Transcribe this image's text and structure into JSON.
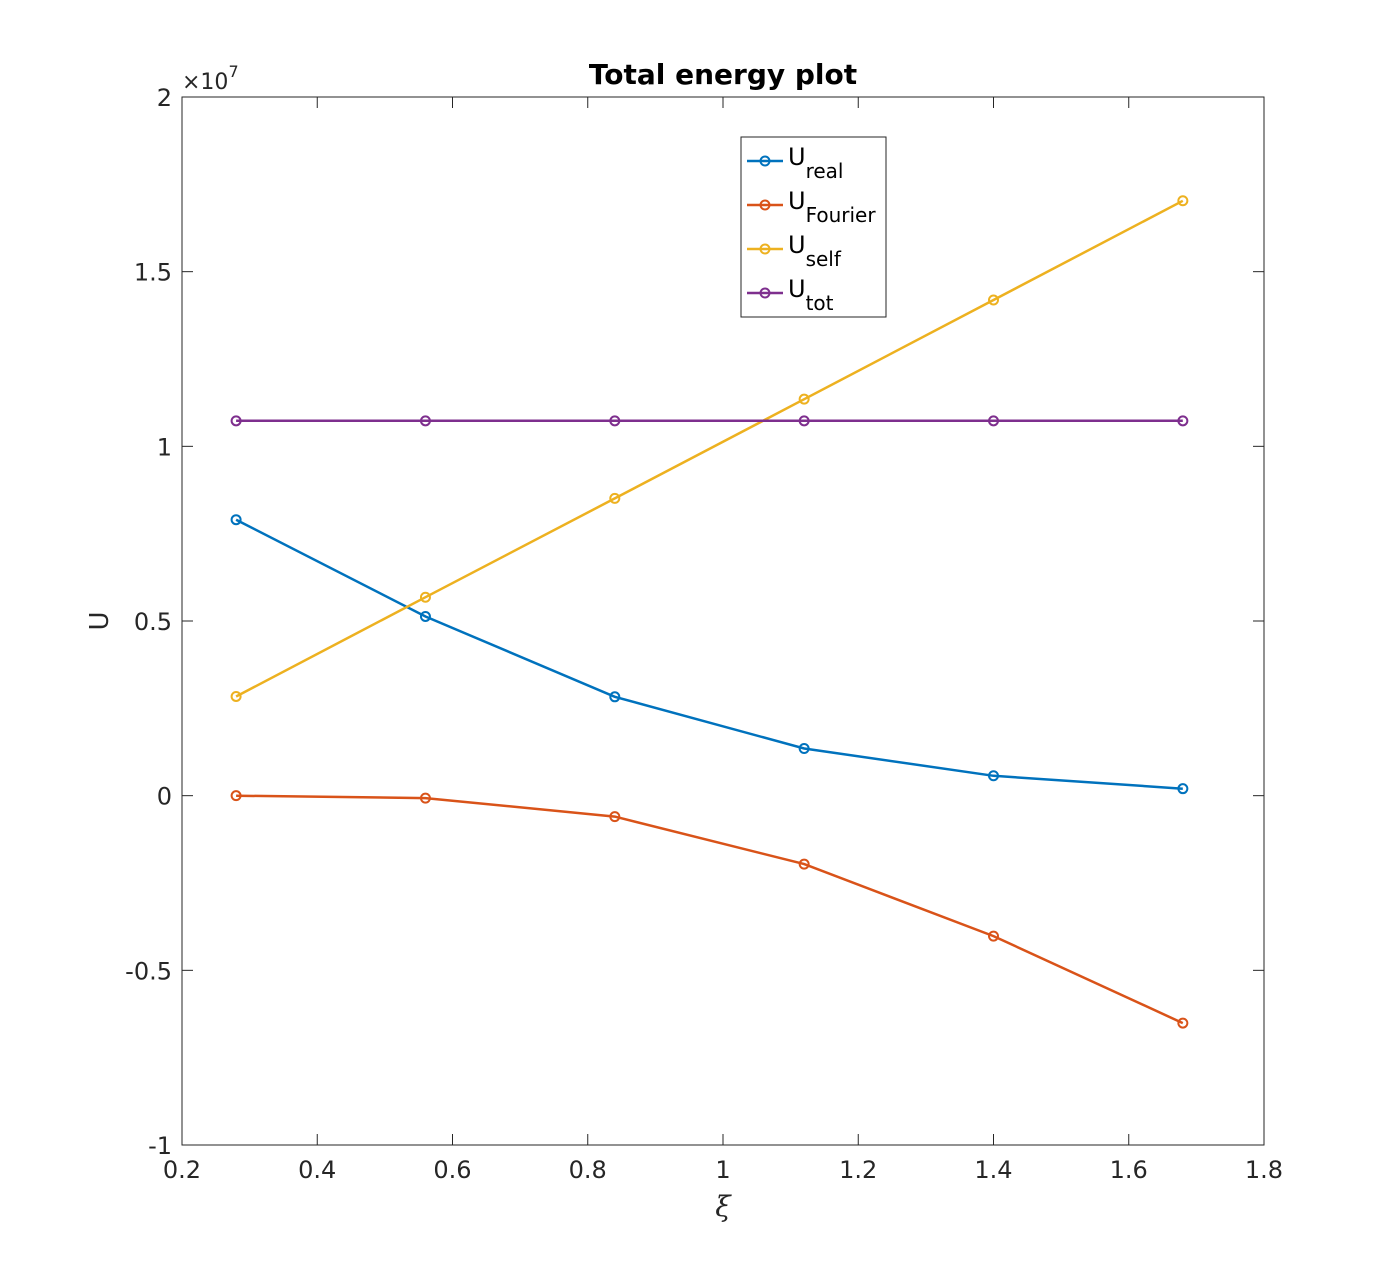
{
  "chart_data": {
    "type": "line",
    "title": "Total energy plot",
    "xlabel": "ξ",
    "ylabel": "U",
    "xlim": [
      0.2,
      1.8
    ],
    "ylim": [
      -10000000,
      20000000
    ],
    "y_exponent_label": "×10",
    "y_exponent_power": "7",
    "xticks": [
      "0.2",
      "0.4",
      "0.6",
      "0.8",
      "1",
      "1.2",
      "1.4",
      "1.6",
      "1.8"
    ],
    "yticks": [
      "-1",
      "-0.5",
      "0",
      "0.5",
      "1",
      "1.5",
      "2"
    ],
    "x": [
      0.28,
      0.56,
      0.84,
      1.12,
      1.4,
      1.68
    ],
    "grid": false,
    "legend_placement": "top-center",
    "marker": "circle",
    "series": [
      {
        "name": "U",
        "sub": "real",
        "color": "#0072BD",
        "values": [
          7900000,
          5130000,
          2830000,
          1350000,
          570000,
          200000
        ]
      },
      {
        "name": "U",
        "sub": "Fourier",
        "color": "#D95319",
        "values": [
          0,
          -70000,
          -600000,
          -1960000,
          -4020000,
          -6510000
        ]
      },
      {
        "name": "U",
        "sub": "self",
        "color": "#EDB120",
        "values": [
          2840000,
          5680000,
          8510000,
          11350000,
          14190000,
          17030000
        ]
      },
      {
        "name": "U",
        "sub": "tot",
        "color": "#7E2F8E",
        "values": [
          10730000,
          10730000,
          10730000,
          10730000,
          10730000,
          10730000
        ]
      }
    ]
  }
}
